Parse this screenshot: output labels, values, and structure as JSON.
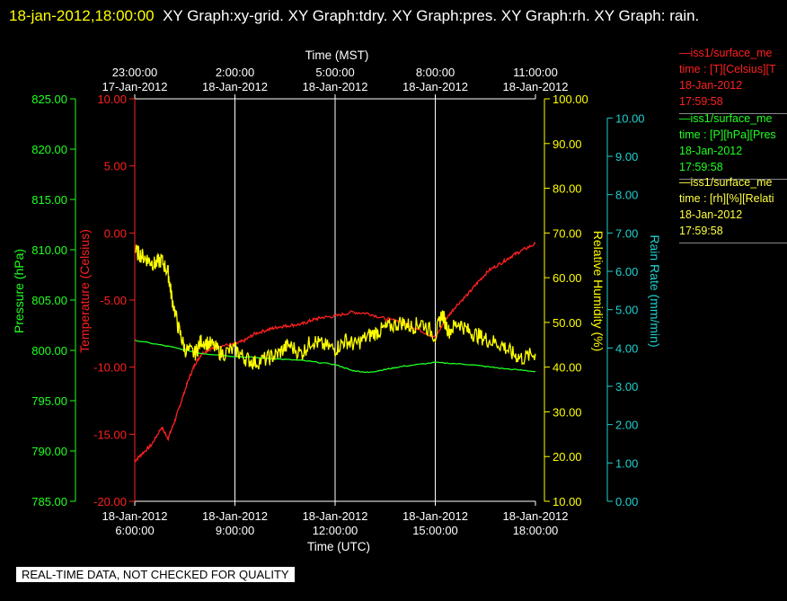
{
  "header": {
    "timestamp": "18-jan-2012,18:00:00",
    "title": "XY Graph:xy-grid.  XY Graph:tdry.  XY Graph:pres.  XY Graph:rh.  XY Graph:  rain."
  },
  "legend": [
    {
      "line": "—iss1/surface_me",
      "desc": "time : [T][Celsius][T",
      "date": "18-Jan-2012",
      "time": "17:59:58",
      "color": "#ff2020"
    },
    {
      "line": "—iss1/surface_me",
      "desc": "time : [P][hPa][Pres",
      "date": "18-Jan-2012",
      "time": "17:59:58",
      "color": "#20ff20"
    },
    {
      "line": "—iss1/surface_me",
      "desc": "time : [rh][%][Relati",
      "date": "18-Jan-2012",
      "time": "17:59:58",
      "color": "#ffff40"
    }
  ],
  "note": "REAL-TIME DATA, NOT CHECKED FOR QUALITY",
  "chart_data": {
    "type": "line",
    "top_axis": {
      "label": "Time (MST)",
      "ticks": [
        {
          "t": 6,
          "l1": "23:00:00",
          "l2": "17-Jan-2012"
        },
        {
          "t": 9,
          "l1": "2:00:00",
          "l2": "18-Jan-2012"
        },
        {
          "t": 12,
          "l1": "5:00:00",
          "l2": "18-Jan-2012"
        },
        {
          "t": 15,
          "l1": "8:00:00",
          "l2": "18-Jan-2012"
        },
        {
          "t": 18,
          "l1": "11:00:00",
          "l2": "18-Jan-2012"
        }
      ]
    },
    "bottom_axis": {
      "label": "Time (UTC)",
      "ticks": [
        {
          "t": 6,
          "l1": "18-Jan-2012",
          "l2": "6:00:00"
        },
        {
          "t": 9,
          "l1": "18-Jan-2012",
          "l2": "9:00:00"
        },
        {
          "t": 12,
          "l1": "18-Jan-2012",
          "l2": "12:00:00"
        },
        {
          "t": 15,
          "l1": "18-Jan-2012",
          "l2": "15:00:00"
        },
        {
          "t": 18,
          "l1": "18-Jan-2012",
          "l2": "18:00:00"
        }
      ]
    },
    "xlim": [
      6,
      18
    ],
    "axes": [
      {
        "id": "temp",
        "label": "Temperature (Celsius)",
        "color": "#ff2020",
        "ylim": [
          -20,
          10
        ],
        "ticks": [
          "-20.00",
          "-15.00",
          "-10.00",
          "-5.00",
          "0.00",
          "5.00",
          "10.00"
        ]
      },
      {
        "id": "pres",
        "label": "Pressure (hPa)",
        "color": "#20ff20",
        "ylim": [
          785,
          825
        ],
        "ticks": [
          "785.00",
          "790.00",
          "795.00",
          "800.00",
          "805.00",
          "810.00",
          "815.00",
          "820.00",
          "825.00"
        ]
      },
      {
        "id": "rh",
        "label": "Relative Humidity (%)",
        "color": "#ffff00",
        "ylim": [
          10,
          100
        ],
        "ticks": [
          "10.00",
          "20.00",
          "30.00",
          "40.00",
          "50.00",
          "60.00",
          "70.00",
          "80.00",
          "90.00",
          "100.00"
        ]
      },
      {
        "id": "rain",
        "label": "Rain Rate (mm/min)",
        "color": "#20d0d0",
        "ylim": [
          0,
          10.5
        ],
        "ticks": [
          "0.00",
          "1.00",
          "2.00",
          "3.00",
          "4.00",
          "5.00",
          "6.00",
          "7.00",
          "8.00",
          "9.00",
          "10.00"
        ]
      }
    ],
    "series": [
      {
        "axis": "temp",
        "color": "#ff2020",
        "x": [
          6.0,
          6.2,
          6.5,
          6.8,
          7.0,
          7.2,
          7.4,
          7.6,
          7.8,
          8.0,
          8.3,
          8.6,
          9.0,
          9.3,
          9.6,
          10.0,
          10.3,
          10.6,
          11.0,
          11.3,
          11.6,
          12.0,
          12.5,
          13.0,
          13.5,
          14.0,
          14.5,
          15.0,
          15.3,
          15.6,
          16.0,
          16.3,
          16.6,
          17.0,
          17.3,
          17.6,
          18.0
        ],
        "values": [
          -17.0,
          -16.5,
          -15.8,
          -14.5,
          -15.3,
          -14.0,
          -12.5,
          -11.0,
          -9.8,
          -9.0,
          -8.6,
          -8.4,
          -8.3,
          -8.0,
          -7.5,
          -7.2,
          -7.0,
          -6.9,
          -6.8,
          -6.5,
          -6.3,
          -6.2,
          -5.9,
          -6.0,
          -6.4,
          -6.6,
          -7.2,
          -7.8,
          -6.5,
          -5.5,
          -4.5,
          -3.6,
          -2.8,
          -2.2,
          -1.7,
          -1.3,
          -0.8
        ]
      },
      {
        "axis": "pres",
        "color": "#20ff20",
        "x": [
          6,
          7,
          8,
          9,
          10,
          11,
          12,
          12.5,
          13,
          13.5,
          14,
          15,
          16,
          17,
          18
        ],
        "values": [
          801.0,
          800.4,
          799.7,
          799.4,
          799.2,
          799.0,
          798.6,
          798.0,
          797.8,
          798.1,
          798.4,
          798.8,
          798.6,
          798.2,
          797.9
        ]
      },
      {
        "axis": "rh",
        "color": "#ffff00",
        "x": [
          6.0,
          6.2,
          6.4,
          6.6,
          6.8,
          7.0,
          7.1,
          7.3,
          7.5,
          7.8,
          8.0,
          8.3,
          8.6,
          9.0,
          9.3,
          9.6,
          10.0,
          10.3,
          10.6,
          11.0,
          11.3,
          11.6,
          12.0,
          12.3,
          12.6,
          13.0,
          13.3,
          13.6,
          14.0,
          14.3,
          14.6,
          15.0,
          15.2,
          15.4,
          15.7,
          16.0,
          16.3,
          16.6,
          17.0,
          17.3,
          17.6,
          18.0
        ],
        "values": [
          66,
          65,
          64,
          63,
          64,
          61,
          56,
          49,
          44,
          43,
          46,
          45,
          43,
          44,
          42,
          41,
          42,
          43,
          45,
          43,
          46,
          45,
          44,
          46,
          45,
          47,
          48,
          49,
          50,
          49,
          50,
          47,
          52,
          48,
          50,
          48,
          47,
          46,
          45,
          43,
          42,
          43
        ]
      },
      {
        "axis": "rain",
        "color": "#20d0d0",
        "x": [],
        "values": []
      }
    ]
  }
}
